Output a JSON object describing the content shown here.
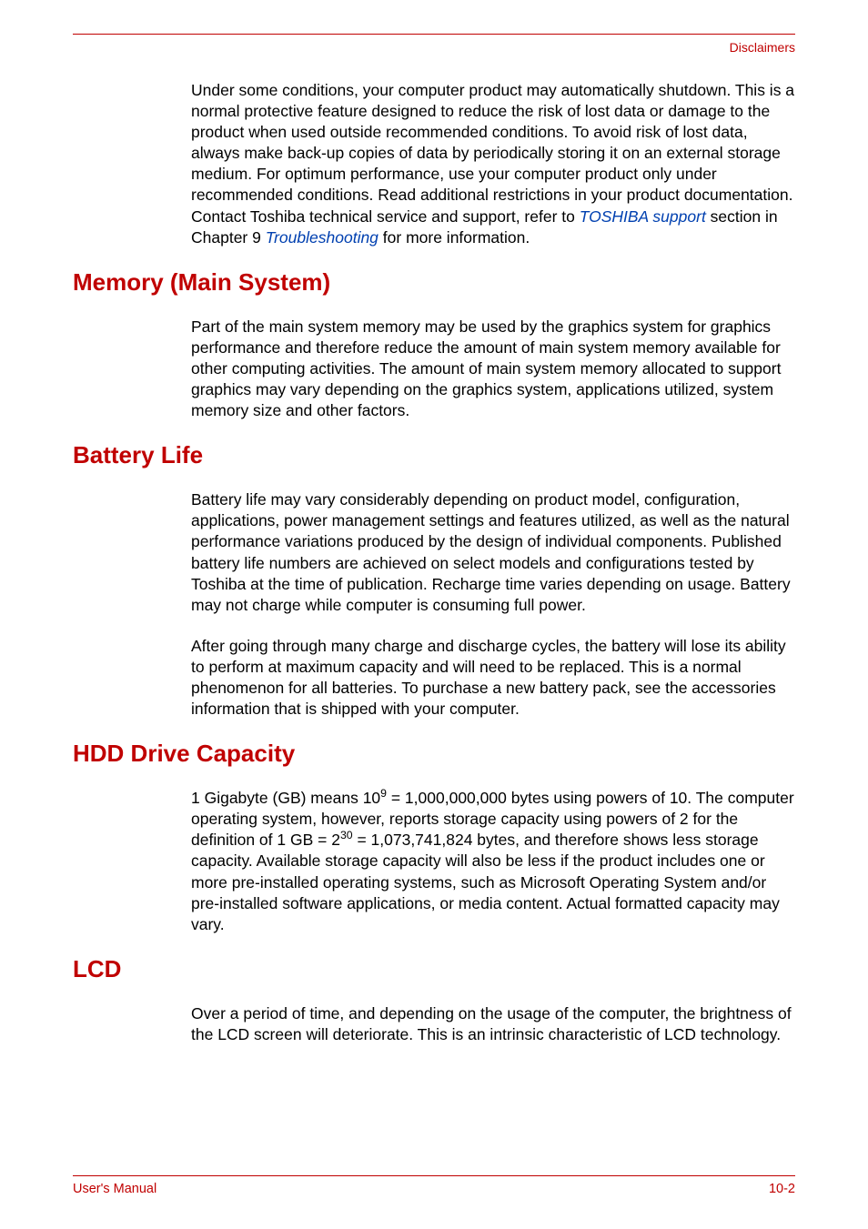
{
  "header": {
    "right_text": "Disclaimers"
  },
  "sections": {
    "intro": {
      "para1_part1": "Under some conditions, your computer product may automatically shutdown. This is a normal protective feature designed to reduce the risk of lost data or damage to the product when used outside recommended conditions. To avoid risk of lost data, always make back-up copies of data by periodically storing it on an external storage medium. For optimum performance, use your computer product only under recommended conditions. Read additional restrictions in your product documentation. Contact Toshiba technical service and support, refer to ",
      "link1": "TOSHIBA support",
      "para1_part2": " section in Chapter 9 ",
      "link2": "Troubleshooting",
      "para1_part3": " for more information."
    },
    "memory": {
      "heading": "Memory (Main System)",
      "para": "Part of the main system memory may be used by the graphics system for graphics performance and therefore reduce the amount of main system memory available for other computing activities. The amount of main system memory allocated to support graphics may vary depending on the graphics system, applications utilized, system memory size and other factors."
    },
    "battery": {
      "heading": "Battery Life",
      "para1": "Battery life may vary considerably depending on product model, configuration, applications, power management settings and features utilized, as well as the natural performance variations produced by the design of individual components. Published battery life numbers are achieved on select models and configurations tested by Toshiba at the time of publication. Recharge time varies depending on usage. Battery may not charge while computer is consuming full power.",
      "para2": "After going through many charge and discharge cycles, the battery will lose its ability to perform at maximum capacity and will need to be replaced. This is a normal phenomenon for all batteries. To purchase a new battery pack, see the accessories information that is shipped with your computer."
    },
    "hdd": {
      "heading": "HDD Drive Capacity",
      "para_part1": "1 Gigabyte (GB) means 10",
      "sup1": "9",
      "para_part2": " = 1,000,000,000 bytes using powers of 10. The computer operating system, however, reports storage capacity using powers of 2 for the definition of 1 GB = 2",
      "sup2": "30",
      "para_part3": " = 1,073,741,824 bytes, and therefore shows less storage capacity. Available storage capacity will also be less if the product includes one or more pre-installed operating systems, such as Microsoft Operating System and/or pre-installed software applications, or media content. Actual formatted capacity may vary."
    },
    "lcd": {
      "heading": "LCD",
      "para": "Over a period of time, and depending on the usage of the computer, the brightness of the LCD screen will deteriorate. This is an intrinsic characteristic of LCD technology."
    }
  },
  "footer": {
    "left": "User's Manual",
    "right": "10-2"
  }
}
